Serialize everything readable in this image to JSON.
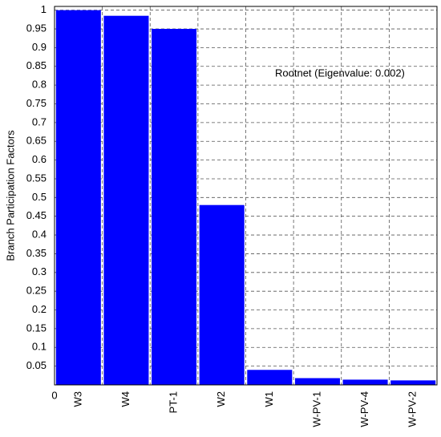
{
  "chart_data": {
    "type": "bar",
    "y_label": "Branch Participation Factors",
    "annotation": "Rootnet (Eigenvalue: 0.002)",
    "categories": [
      "W3",
      "W4",
      "PT-1",
      "W2",
      "W1",
      "W-PV-1",
      "W-PV-4",
      "W-PV-2"
    ],
    "values": [
      1.0,
      0.985,
      0.95,
      0.48,
      0.04,
      0.018,
      0.014,
      0.012
    ],
    "color": "#0000ff",
    "ylim": [
      0,
      1.01
    ],
    "yticks": [
      0,
      0.05,
      0.1,
      0.15,
      0.2,
      0.25,
      0.3,
      0.35,
      0.4,
      0.45,
      0.5,
      0.55,
      0.6,
      0.65,
      0.7,
      0.75,
      0.8,
      0.85,
      0.9,
      0.95,
      1
    ],
    "grid": true
  }
}
